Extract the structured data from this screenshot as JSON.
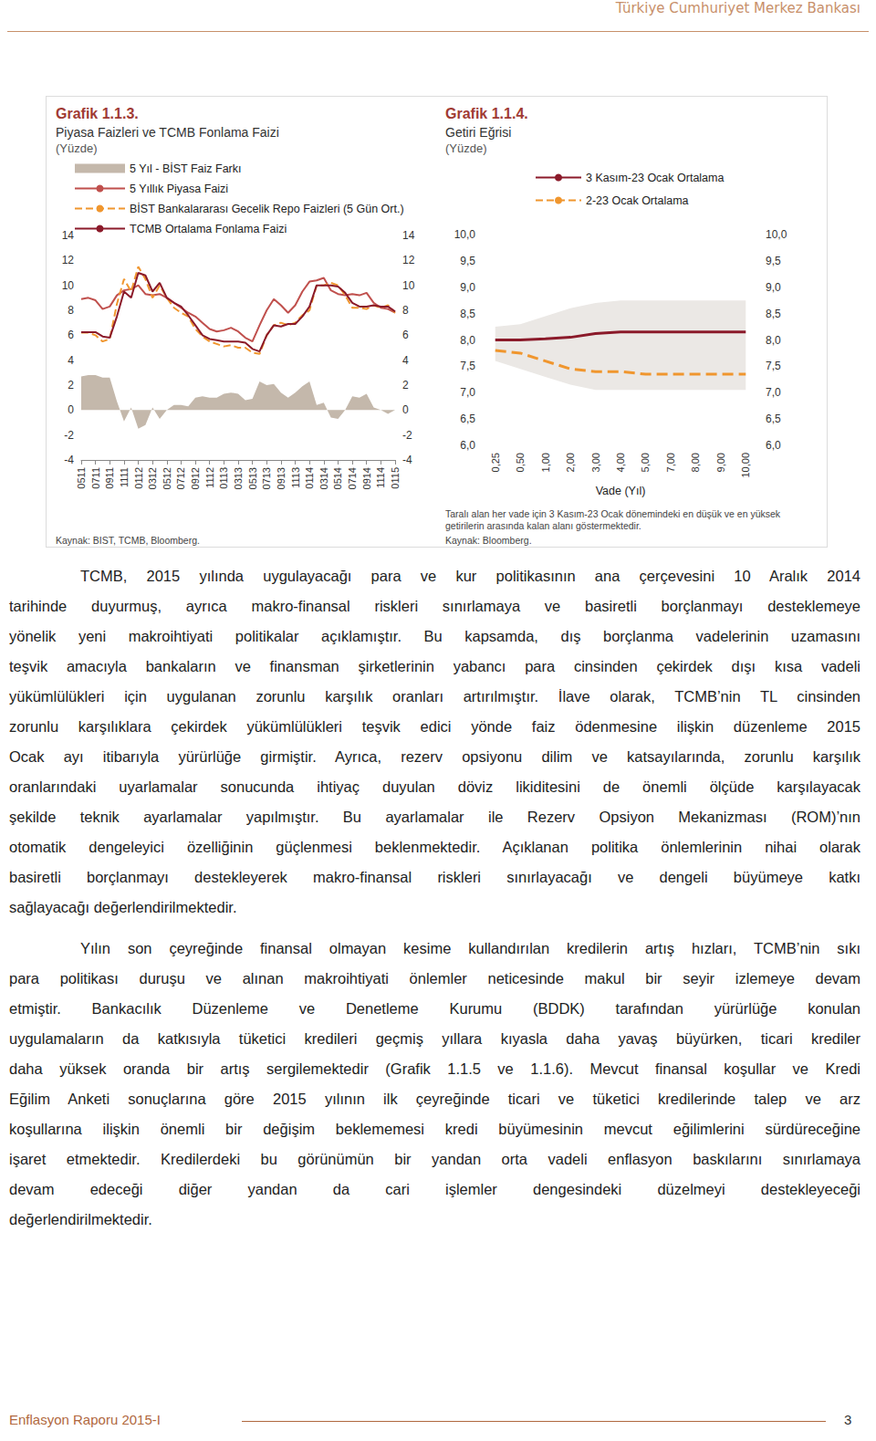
{
  "header": "Türkiye Cumhuriyet Merkez Bankası",
  "chart_data": [
    {
      "type": "line",
      "title": "Grafik 1.1.3.",
      "subtitle": "Piyasa Faizleri ve TCMB Fonlama Faizi",
      "ylabel": "(Yüzde)",
      "source": "Kaynak: BIST, TCMB, Bloomberg.",
      "categories": [
        "0511",
        null,
        "0711",
        null,
        "0911",
        null,
        "1111",
        null,
        "0112",
        null,
        "0312",
        null,
        "0512",
        null,
        "0712",
        null,
        "0912",
        null,
        "1112",
        null,
        "0113",
        null,
        "0313",
        null,
        "0513",
        null,
        "0713",
        null,
        "0913",
        null,
        "1113",
        null,
        "0114",
        null,
        "0314",
        null,
        "0514",
        null,
        "0714",
        null,
        "0914",
        null,
        "1114",
        null,
        "0115"
      ],
      "series": [
        {
          "name": "5 Yıl - BİST Faiz Farkı",
          "type": "area",
          "color": "#c4b8ab",
          "values": [
            2.7,
            2.8,
            2.8,
            2.6,
            2.6,
            0.7,
            -0.9,
            0.2,
            -1.5,
            -1.2,
            0.2,
            -0.7,
            0.0,
            0.4,
            0.4,
            0.3,
            1.0,
            1.1,
            1.0,
            1.0,
            1.3,
            1.4,
            1.3,
            0.8,
            0.9,
            2.3,
            2.0,
            2.1,
            1.4,
            1.0,
            1.4,
            1.9,
            2.3,
            0.4,
            0.6,
            -0.6,
            -0.7,
            0.0,
            1.1,
            1.0,
            1.3,
            0.2,
            0.0,
            -0.3,
            0.0
          ]
        },
        {
          "name": "5 Yıllık Piyasa Faizi",
          "type": "line",
          "color": "#c0504d",
          "line_style": "solid",
          "values": [
            8.9,
            9.0,
            8.8,
            8.1,
            8.3,
            9.2,
            9.6,
            9.7,
            10.0,
            9.3,
            9.2,
            9.3,
            9.0,
            8.6,
            8.2,
            7.8,
            7.5,
            7.0,
            6.5,
            6.3,
            6.4,
            6.6,
            6.3,
            5.8,
            5.5,
            6.8,
            8.0,
            8.9,
            8.4,
            7.8,
            8.4,
            9.5,
            10.3,
            10.4,
            10.6,
            9.6,
            9.3,
            9.2,
            9.3,
            9.2,
            9.4,
            8.6,
            8.2,
            8.1,
            7.8
          ]
        },
        {
          "name": "BİST Bankalararası Gecelik Repo Faizleri (5 Gün Ort.)",
          "type": "line",
          "color": "#f0962e",
          "line_style": "dashed",
          "values": [
            6.2,
            6.2,
            6.0,
            5.5,
            5.7,
            8.5,
            10.5,
            9.5,
            11.5,
            10.5,
            9.0,
            10.0,
            9.0,
            8.2,
            7.8,
            7.5,
            6.5,
            5.9,
            5.5,
            5.3,
            5.1,
            5.2,
            5.0,
            5.0,
            4.6,
            4.5,
            6.0,
            6.8,
            7.0,
            6.8,
            7.0,
            7.6,
            8.0,
            10.0,
            10.0,
            10.2,
            10.0,
            9.2,
            8.2,
            8.2,
            8.1,
            8.4,
            8.2,
            8.4,
            7.8
          ]
        },
        {
          "name": "TCMB Ortalama Fonlama Faizi",
          "type": "line",
          "color": "#8b1a2a",
          "line_style": "solid",
          "values": [
            6.25,
            6.25,
            6.25,
            5.9,
            5.8,
            7.5,
            9.5,
            9.0,
            11.0,
            10.8,
            9.5,
            10.2,
            9.0,
            8.6,
            8.3,
            7.6,
            6.8,
            6.0,
            5.7,
            5.6,
            5.5,
            5.5,
            5.5,
            5.4,
            4.9,
            4.7,
            6.0,
            6.8,
            6.7,
            6.9,
            6.9,
            7.5,
            8.3,
            10.0,
            10.0,
            10.0,
            9.9,
            9.4,
            8.6,
            8.3,
            8.3,
            8.4,
            8.3,
            8.3,
            7.9
          ]
        }
      ],
      "ylim": [
        -4,
        14
      ],
      "yticks": [
        -4,
        -2,
        0,
        2,
        4,
        6,
        8,
        10,
        12,
        14
      ],
      "y2lim": [
        -4,
        14
      ],
      "y2ticks": [
        -4,
        -2,
        0,
        2,
        4,
        6,
        8,
        10,
        12,
        14
      ],
      "grid": false,
      "legend": "top-left"
    },
    {
      "type": "line",
      "title": "Grafik 1.1.4.",
      "subtitle": "Getiri Eğrisi",
      "ylabel": "(Yüzde)",
      "xlabel": "Vade (Yıl)",
      "note": "Taralı alan her vade için 3 Kasım-23 Ocak dönemindeki en düşük ve en yüksek getirilerin arasında kalan alanı göstermektedir.",
      "source": "Kaynak: Bloomberg.",
      "categories": [
        "0,25",
        "0,50",
        "1,00",
        "2,00",
        "3,00",
        "4,00",
        "5,00",
        "7,00",
        "8,00",
        "9,00",
        "10,00"
      ],
      "series": [
        {
          "name": "3 Kasım-23 Ocak Ortalama",
          "color": "#8b1a2a",
          "line_style": "solid",
          "values": [
            8.0,
            8.0,
            8.02,
            8.05,
            8.12,
            8.15,
            8.15,
            8.15,
            8.15,
            8.15,
            8.15
          ]
        },
        {
          "name": "2-23 Ocak Ortalama",
          "color": "#f0962e",
          "line_style": "dashed",
          "values": [
            7.8,
            7.75,
            7.6,
            7.45,
            7.4,
            7.4,
            7.35,
            7.35,
            7.35,
            7.35,
            7.35
          ]
        }
      ],
      "band": {
        "color": "#ebe8e5",
        "lower": [
          7.6,
          7.45,
          7.3,
          7.15,
          7.05,
          7.05,
          7.05,
          7.05,
          7.05,
          7.05,
          7.05
        ],
        "upper": [
          8.25,
          8.3,
          8.45,
          8.6,
          8.7,
          8.75,
          8.75,
          8.75,
          8.75,
          8.75,
          8.75
        ]
      },
      "ylim": [
        6,
        10
      ],
      "yticks": [
        {
          "value": 6,
          "label": "6,0"
        },
        {
          "value": 6.5,
          "label": "6,5"
        },
        {
          "value": 7,
          "label": "7,0"
        },
        {
          "value": 7.5,
          "label": "7,5"
        },
        {
          "value": 8,
          "label": "8,0"
        },
        {
          "value": 8.5,
          "label": "8,5"
        },
        {
          "value": 9,
          "label": "9,0"
        },
        {
          "value": 9.5,
          "label": "9,5"
        },
        {
          "value": 10,
          "label": "10,0"
        }
      ],
      "y2lim": [
        6,
        10
      ],
      "y2ticks": [
        {
          "value": 6,
          "label": "6,0"
        },
        {
          "value": 6.5,
          "label": "6,5"
        },
        {
          "value": 7,
          "label": "7,0"
        },
        {
          "value": 7.5,
          "label": "7,5"
        },
        {
          "value": 8,
          "label": "8,0"
        },
        {
          "value": 8.5,
          "label": "8,5"
        },
        {
          "value": 9,
          "label": "9,0"
        },
        {
          "value": 9.5,
          "label": "9,5"
        },
        {
          "value": 10,
          "label": "10,0"
        }
      ],
      "grid": false,
      "legend": "top-right"
    }
  ],
  "paragraphs": [
    [
      "TCMB, 2015 yılında uygulayacağı para ve kur politikasının ana çerçevesini 10 Aralık 2014",
      "tarihinde duyurmuş, ayrıca makro-finansal riskleri sınırlamaya ve basiretli borçlanmayı desteklemeye",
      "yönelik yeni makroihtiyati politikalar açıklamıştır. Bu kapsamda, dış borçlanma vadelerinin uzamasını",
      "teşvik amacıyla bankaların ve finansman şirketlerinin yabancı para cinsinden çekirdek dışı kısa vadeli",
      "yükümlülükleri için uygulanan zorunlu karşılık oranları artırılmıştır. İlave olarak, TCMB’nin TL cinsinden",
      "zorunlu karşılıklara çekirdek yükümlülükleri teşvik edici yönde faiz ödenmesine ilişkin düzenleme 2015",
      "Ocak ayı itibarıyla yürürlüğe girmiştir. Ayrıca, rezerv opsiyonu dilim ve katsayılarında, zorunlu karşılık",
      "oranlarındaki uyarlamalar sonucunda ihtiyaç duyulan döviz likiditesini de önemli ölçüde karşılayacak",
      "şekilde teknik ayarlamalar yapılmıştır. Bu ayarlamalar ile Rezerv Opsiyon Mekanizması (ROM)’nın",
      "otomatik dengeleyici özelliğinin güçlenmesi beklenmektedir. Açıklanan politika önlemlerinin nihai olarak",
      "basiretli borçlanmayı destekleyerek makro-finansal riskleri sınırlayacağı ve dengeli büyümeye katkı",
      "sağlayacağı değerlendirilmektedir."
    ],
    [
      "Yılın son çeyreğinde finansal olmayan kesime kullandırılan kredilerin artış hızları, TCMB’nin sıkı",
      "para politikası duruşu ve alınan makroihtiyati önlemler neticesinde makul bir seyir izlemeye devam",
      "etmiştir. Bankacılık Düzenleme ve Denetleme Kurumu (BDDK) tarafından yürürlüğe konulan",
      "uygulamaların da katkısıyla tüketici kredileri geçmiş yıllara kıyasla daha yavaş büyürken, ticari krediler",
      "daha yüksek oranda bir artış sergilemektedir (Grafik 1.1.5 ve 1.1.6). Mevcut finansal koşullar ve Kredi",
      "Eğilim Anketi sonuçlarına göre 2015 yılının ilk çeyreğinde ticari ve tüketici kredilerinde talep ve arz",
      "koşullarına ilişkin önemli bir değişim beklememesi kredi büyümesinin mevcut eğilimlerini sürdüreceğine",
      "işaret etmektedir. Kredilerdeki bu görünümün bir yandan orta vadeli enflasyon baskılarını sınırlamaya",
      "devam edeceği diğer yandan da cari işlemler dengesindeki düzelmeyi destekleyeceği",
      "değerlendirilmektedir."
    ]
  ],
  "footer": {
    "title": "Enflasyon Raporu 2015-I",
    "page": 3
  }
}
